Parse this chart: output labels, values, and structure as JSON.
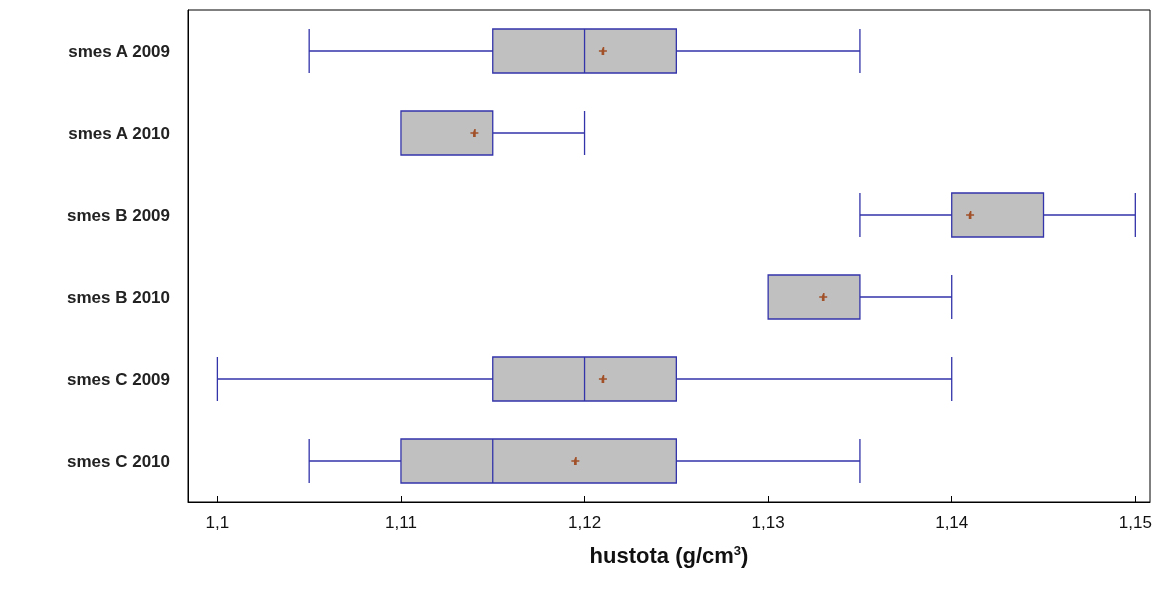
{
  "chart_data": {
    "type": "box",
    "orientation": "horizontal",
    "xlabel": "hustota (g/cm$^{3}$)",
    "categories": [
      "smes A 2009",
      "smes A 2010",
      "smes B 2009",
      "smes B 2010",
      "smes C 2009",
      "smes C 2010"
    ],
    "xlim": [
      1.0984,
      1.1508
    ],
    "xticks": [
      {
        "value": 1.1,
        "label": "1,1"
      },
      {
        "value": 1.11,
        "label": "1,11"
      },
      {
        "value": 1.12,
        "label": "1,12"
      },
      {
        "value": 1.13,
        "label": "1,13"
      },
      {
        "value": 1.14,
        "label": "1,14"
      },
      {
        "value": 1.15,
        "label": "1,15"
      }
    ],
    "grid": false,
    "marker": "cross",
    "series": [
      {
        "color": "#c0c0c0",
        "boxes": [
          {
            "low": 1.105,
            "q1": 1.115,
            "median": 1.12,
            "q3": 1.125,
            "high": 1.135,
            "mean": 1.121
          },
          {
            "low": 1.11,
            "q1": 1.11,
            "median": 1.11,
            "q3": 1.115,
            "high": 1.12,
            "mean": 1.114
          },
          {
            "low": 1.135,
            "q1": 1.14,
            "median": 1.14,
            "q3": 1.145,
            "high": 1.15,
            "mean": 1.141
          },
          {
            "low": 1.13,
            "q1": 1.13,
            "median": 1.13,
            "q3": 1.135,
            "high": 1.14,
            "mean": 1.133
          },
          {
            "low": 1.1,
            "q1": 1.115,
            "median": 1.12,
            "q3": 1.125,
            "high": 1.14,
            "mean": 1.121
          },
          {
            "low": 1.105,
            "q1": 1.11,
            "median": 1.115,
            "q3": 1.125,
            "high": 1.135,
            "mean": 1.1195
          }
        ]
      }
    ]
  }
}
